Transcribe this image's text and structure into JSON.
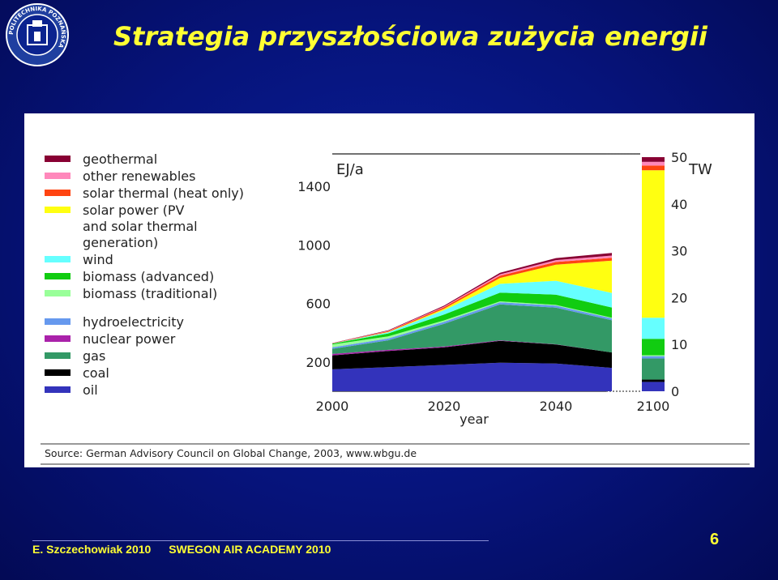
{
  "slide": {
    "title": "Strategia przyszłościowa zużycia energii",
    "logo_text": "POLITECHNIKA POZNAŃSKA",
    "footer_author": "E. Szczechowiak 2010",
    "footer_event": "SWEGON AIR ACADEMY 2010",
    "page_number": "6",
    "colors": {
      "background": "#06137a",
      "title": "#ffff33",
      "footer": "#ffff33"
    }
  },
  "chart_data": {
    "type": "area",
    "stacked": true,
    "source": "Source: German Advisory Council on Global Change, 2003, www.wbgu.de",
    "xlabel": "year",
    "x": [
      2000,
      2010,
      2020,
      2030,
      2040,
      2050
    ],
    "x_ticks": [
      "2000",
      "2020",
      "2040",
      "2100"
    ],
    "x_break_label": "2100",
    "left_axis": {
      "unit": "EJ/a",
      "ticks": [
        "200",
        "600",
        "1000",
        "1400"
      ]
    },
    "right_axis": {
      "unit": "TW",
      "ticks": [
        "0",
        "10",
        "20",
        "30",
        "40",
        "50"
      ],
      "ylim": [
        0,
        50
      ]
    },
    "legend": [
      "geothermal",
      "other renewables",
      "solar thermal (heat only)",
      "solar power (PV and solar thermal generation)",
      "wind",
      "biomass (advanced)",
      "biomass (traditional)",
      "hydroelectricity",
      "nuclear power",
      "gas",
      "coal",
      "oil"
    ],
    "legend_lines": [
      [
        "geothermal"
      ],
      [
        "other renewables"
      ],
      [
        "solar thermal (heat only)"
      ],
      [
        "solar power (PV",
        "and solar thermal",
        "generation)"
      ],
      [
        "wind"
      ],
      [
        "biomass (advanced)"
      ],
      [
        "biomass (traditional)"
      ],
      [
        "hydroelectricity"
      ],
      [
        "nuclear power"
      ],
      [
        "gas"
      ],
      [
        "coal"
      ],
      [
        "oil"
      ]
    ],
    "series": [
      {
        "name": "oil",
        "color": "#3333bb",
        "values": [
          150,
          165,
          180,
          195,
          190,
          160
        ],
        "value_2100": 2.0
      },
      {
        "name": "coal",
        "color": "#000000",
        "values": [
          95,
          110,
          120,
          150,
          130,
          105
        ],
        "value_2100": 0.5
      },
      {
        "name": "nuclear power",
        "color": "#aa22aa",
        "values": [
          10,
          8,
          6,
          3,
          1,
          0
        ],
        "value_2100": 0
      },
      {
        "name": "gas",
        "color": "#339966",
        "values": [
          35,
          65,
          155,
          245,
          250,
          220
        ],
        "value_2100": 4.5
      },
      {
        "name": "hydroelectricity",
        "color": "#6699ee",
        "values": [
          10,
          12,
          13,
          15,
          14,
          13
        ],
        "value_2100": 0.5
      },
      {
        "name": "biomass (traditional)",
        "color": "#99ff99",
        "values": [
          20,
          15,
          10,
          6,
          5,
          4
        ],
        "value_2100": 0.2
      },
      {
        "name": "biomass (advanced)",
        "color": "#11cc11",
        "values": [
          5,
          20,
          40,
          60,
          70,
          70
        ],
        "value_2100": 3.5
      },
      {
        "name": "wind",
        "color": "#66ffff",
        "values": [
          1,
          8,
          30,
          60,
          95,
          100
        ],
        "value_2100": 4.5
      },
      {
        "name": "solar power (PV and solar thermal generation)",
        "color": "#ffff11",
        "values": [
          0,
          2,
          10,
          40,
          110,
          220
        ],
        "value_2100": 31.5
      },
      {
        "name": "solar thermal (heat only)",
        "color": "#ff4411",
        "values": [
          1,
          5,
          10,
          15,
          18,
          20
        ],
        "value_2100": 1.0
      },
      {
        "name": "other renewables",
        "color": "#ff88bb",
        "values": [
          1,
          3,
          5,
          10,
          13,
          15
        ],
        "value_2100": 0.8
      },
      {
        "name": "geothermal",
        "color": "#880033",
        "values": [
          1,
          3,
          6,
          10,
          14,
          18
        ],
        "value_2100": 1.0
      }
    ]
  }
}
